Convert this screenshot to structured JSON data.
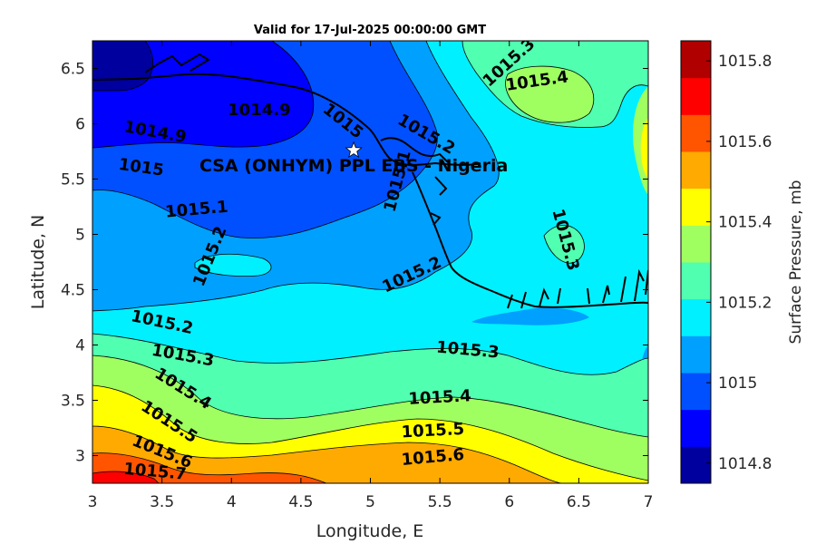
{
  "chart_data": {
    "type": "contour",
    "title": "Valid for 17-Jul-2025 00:00:00 GMT",
    "xlabel": "Longitude, E",
    "ylabel": "Latitude, N",
    "xlim": [
      3,
      7
    ],
    "ylim": [
      2.75,
      6.75
    ],
    "xticks": [
      "3",
      "3.5",
      "4",
      "4.5",
      "5",
      "5.5",
      "6",
      "6.5",
      "7"
    ],
    "yticks": [
      "3",
      "3.5",
      "4",
      "4.5",
      "5",
      "5.5",
      "6",
      "6.5"
    ],
    "colorbar": {
      "label": "Surface Pressure, mb",
      "min": 1014.75,
      "max": 1015.85,
      "tick_labels": [
        "1014.8",
        "1015",
        "1015.2",
        "1015.4",
        "1015.6",
        "1015.8"
      ],
      "colors": [
        "#00009f",
        "#0000ff",
        "#0050ff",
        "#00a0ff",
        "#00f0ff",
        "#50ffb0",
        "#a0ff60",
        "#ffff00",
        "#ffaa00",
        "#ff5500",
        "#ff0000",
        "#b00000"
      ]
    },
    "site": {
      "name": "CSA (ONHYM) PPL EBS - Nigeria",
      "lon": 4.88,
      "lat": 5.76
    },
    "contour_labels": [
      {
        "text": "1014.9",
        "lon": 4.2,
        "lat": 6.12,
        "rot": 0
      },
      {
        "text": "1014.9",
        "lon": 3.45,
        "lat": 5.92,
        "rot": 10
      },
      {
        "text": "1015",
        "lon": 3.35,
        "lat": 5.6,
        "rot": 8
      },
      {
        "text": "1015",
        "lon": 4.8,
        "lat": 6.02,
        "rot": 38
      },
      {
        "text": "1015.1",
        "lon": 3.75,
        "lat": 5.22,
        "rot": -5
      },
      {
        "text": "1015.1",
        "lon": 5.2,
        "lat": 5.48,
        "rot": -75
      },
      {
        "text": "1015.2",
        "lon": 5.4,
        "lat": 5.9,
        "rot": 30
      },
      {
        "text": "1015.2",
        "lon": 3.85,
        "lat": 4.8,
        "rot": -68
      },
      {
        "text": "1015.2",
        "lon": 5.3,
        "lat": 4.63,
        "rot": -25
      },
      {
        "text": "1015.2",
        "lon": 3.5,
        "lat": 4.2,
        "rot": 12
      },
      {
        "text": "1015.3",
        "lon": 3.65,
        "lat": 3.9,
        "rot": 10
      },
      {
        "text": "1015.3",
        "lon": 5.7,
        "lat": 3.95,
        "rot": 5
      },
      {
        "text": "1015.3",
        "lon": 6.0,
        "lat": 6.55,
        "rot": -42
      },
      {
        "text": "1015.3",
        "lon": 6.4,
        "lat": 4.95,
        "rot": 75
      },
      {
        "text": "1015.4",
        "lon": 6.2,
        "lat": 6.38,
        "rot": -8
      },
      {
        "text": "1015.4",
        "lon": 3.65,
        "lat": 3.6,
        "rot": 32
      },
      {
        "text": "1015.4",
        "lon": 5.5,
        "lat": 3.52,
        "rot": -3
      },
      {
        "text": "1015.5",
        "lon": 3.55,
        "lat": 3.3,
        "rot": 33
      },
      {
        "text": "1015.5",
        "lon": 5.45,
        "lat": 3.22,
        "rot": -3
      },
      {
        "text": "1015.6",
        "lon": 3.5,
        "lat": 3.03,
        "rot": 22
      },
      {
        "text": "1015.6",
        "lon": 5.45,
        "lat": 2.98,
        "rot": -5
      },
      {
        "text": "1015.7",
        "lon": 3.45,
        "lat": 2.85,
        "rot": 5
      }
    ]
  }
}
